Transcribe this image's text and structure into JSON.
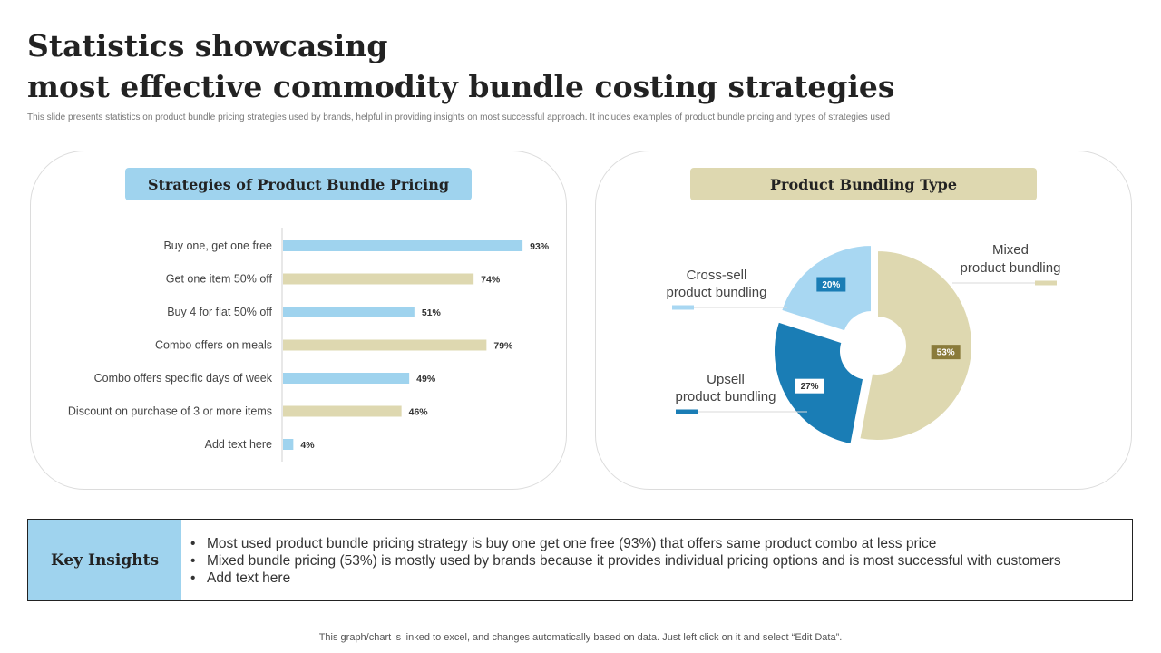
{
  "header": {
    "title_line1": "Statistics showcasing",
    "title_line2": "most effective commodity bundle costing strategies",
    "subtitle": "This slide presents statistics on product bundle pricing strategies used by brands, helpful in providing insights on most successful approach. It includes examples of product bundle pricing and types of strategies used"
  },
  "left_panel": {
    "heading": "Strategies of Product Bundle Pricing"
  },
  "right_panel": {
    "heading": "Product Bundling Type"
  },
  "chart_data": [
    {
      "type": "bar",
      "orientation": "horizontal",
      "categories": [
        "Buy one, get one free",
        "Get one item 50% off",
        "Buy 4 for flat 50% off",
        "Combo offers on meals",
        "Combo offers specific days of week",
        "Discount on purchase of 3 or more items",
        "Add text here"
      ],
      "values": [
        93,
        74,
        51,
        79,
        49,
        46,
        4
      ],
      "labels": [
        "93%",
        "74%",
        "51%",
        "79%",
        "49%",
        "46%",
        "4%"
      ],
      "colors": [
        "#9fd3ee",
        "#ded8b0",
        "#9fd3ee",
        "#ded8b0",
        "#9fd3ee",
        "#ded8b0",
        "#9fd3ee"
      ],
      "xlim": [
        0,
        100
      ],
      "grid": false,
      "legend": "none"
    },
    {
      "type": "pie",
      "variant": "donut",
      "slices": [
        {
          "name": "Mixed product bundling",
          "line1": "Mixed",
          "line2": "product bundling",
          "value": 53,
          "label": "53%",
          "color": "#ded8b0",
          "label_bg": "#8a7b3a"
        },
        {
          "name": "Upsell product bundling",
          "line1": "Upsell",
          "line2": "product bundling",
          "value": 27,
          "label": "27%",
          "color": "#1a7db5",
          "label_bg": "#ffffff"
        },
        {
          "name": "Cross-sell product bundling",
          "line1": "Cross-sell",
          "line2": "product bundling",
          "value": 20,
          "label": "20%",
          "color": "#a8d7f2",
          "label_bg": "#1a7db5"
        }
      ]
    }
  ],
  "insights": {
    "heading": "Key Insights",
    "items": [
      "Most used product bundle pricing strategy is buy one get one free (93%) that offers same product combo at less price",
      "Mixed bundle pricing (53%) is mostly used by brands because it provides individual pricing options and is most successful with customers",
      "Add text here"
    ]
  },
  "footnote": "This graph/chart is linked to excel,  and changes automatically based on data. Just left click on it and select “Edit Data”."
}
